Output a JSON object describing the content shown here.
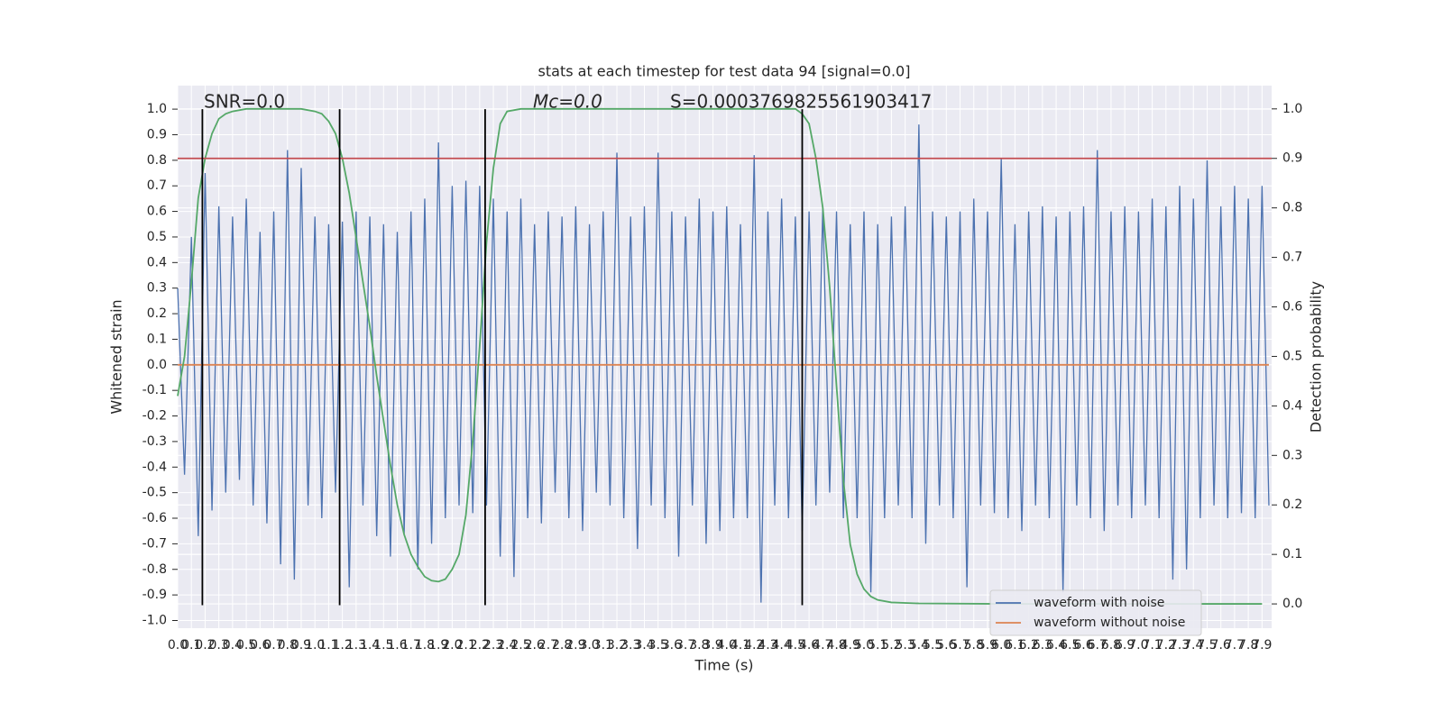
{
  "chart_data": {
    "type": "line",
    "title": "stats at each timestep for test data 94 [signal=0.0]",
    "xlabel": "Time (s)",
    "ylabel": "Whitened strain",
    "y2label": "Detection probability",
    "annotations": [
      "SNR=0.0",
      "Mc=0.0",
      "S=0.0003769825561903417"
    ],
    "xlim": [
      0,
      7.97
    ],
    "ylim": [
      -1.03,
      1.092
    ],
    "y2lim": [
      -0.049,
      1.047
    ],
    "grid": true,
    "legend": "lower right",
    "xticks": [
      {
        "value": 0,
        "label": "0.0"
      },
      0.1,
      0.2,
      0.3,
      0.4,
      0.5,
      0.6,
      0.7,
      0.8,
      0.9,
      {
        "value": 1,
        "label": "1.0"
      },
      1.1,
      1.2,
      1.3,
      1.4,
      1.5,
      1.6,
      1.7,
      1.8,
      1.9,
      {
        "value": 2,
        "label": "2.0"
      },
      2.1,
      2.2,
      2.3,
      2.4,
      2.5,
      2.6,
      2.7,
      2.8,
      2.9,
      {
        "value": 3,
        "label": "3.0"
      },
      3.1,
      3.2,
      3.3,
      3.4,
      3.5,
      3.6,
      3.7,
      3.8,
      3.9,
      {
        "value": 4,
        "label": "4.0"
      },
      4.1,
      4.2,
      4.3,
      4.4,
      4.5,
      4.6,
      4.7,
      4.8,
      4.9,
      {
        "value": 5,
        "label": "5.0"
      },
      5.1,
      5.2,
      5.3,
      5.4,
      5.5,
      5.6,
      5.7,
      5.8,
      5.9,
      {
        "value": 6,
        "label": "6.0"
      },
      6.1,
      6.2,
      6.3,
      6.4,
      6.5,
      6.6,
      6.7,
      6.8,
      6.9,
      {
        "value": 7,
        "label": "7.0"
      },
      7.1,
      7.2,
      7.3,
      7.4,
      7.5,
      7.6,
      7.7,
      7.8,
      7.9
    ],
    "yticks": [
      {
        "value": -1,
        "label": "-1.0"
      },
      -0.9,
      -0.8,
      -0.7,
      -0.6,
      -0.5,
      -0.4,
      -0.3,
      -0.2,
      -0.1,
      {
        "value": 0,
        "label": "0.0"
      },
      0.1,
      0.2,
      0.3,
      0.4,
      0.5,
      0.6,
      0.7,
      0.8,
      0.9,
      {
        "value": 1,
        "label": "1.0"
      }
    ],
    "y2ticks": [
      {
        "value": 0,
        "label": "0.0"
      },
      0.1,
      0.2,
      0.3,
      0.4,
      0.5,
      0.6,
      0.7,
      0.8,
      0.9,
      {
        "value": 1,
        "label": "1.0"
      }
    ],
    "vlines": [
      0.18,
      1.18,
      2.24,
      4.55
    ],
    "vline_ymin": -0.94,
    "vline_ymax": 1.0,
    "vline_color": "#000000",
    "hlines": [
      {
        "value": 0.9,
        "axis": "y2",
        "color": "#c44e52"
      }
    ],
    "series": [
      {
        "name": "waveform with noise",
        "color": "#4c72b0",
        "x": [
          0,
          0.05,
          0.1,
          0.15,
          0.2,
          0.25,
          0.3,
          0.35,
          0.4,
          0.45,
          0.5,
          0.55,
          0.6,
          0.65,
          0.7,
          0.75,
          0.8,
          0.85,
          0.9,
          0.95,
          1,
          1.05,
          1.1,
          1.15,
          1.2,
          1.25,
          1.3,
          1.35,
          1.4,
          1.45,
          1.5,
          1.55,
          1.6,
          1.65,
          1.7,
          1.75,
          1.8,
          1.85,
          1.9,
          1.95,
          2,
          2.05,
          2.1,
          2.15,
          2.2,
          2.25,
          2.3,
          2.35,
          2.4,
          2.45,
          2.5,
          2.55,
          2.6,
          2.65,
          2.7,
          2.75,
          2.8,
          2.85,
          2.9,
          2.95,
          3,
          3.05,
          3.1,
          3.15,
          3.2,
          3.25,
          3.3,
          3.35,
          3.4,
          3.45,
          3.5,
          3.55,
          3.6,
          3.65,
          3.7,
          3.75,
          3.8,
          3.85,
          3.9,
          3.95,
          4,
          4.05,
          4.1,
          4.15,
          4.2,
          4.25,
          4.3,
          4.35,
          4.4,
          4.45,
          4.5,
          4.55,
          4.6,
          4.65,
          4.7,
          4.75,
          4.8,
          4.85,
          4.9,
          4.95,
          5,
          5.05,
          5.1,
          5.15,
          5.2,
          5.25,
          5.3,
          5.35,
          5.4,
          5.45,
          5.5,
          5.55,
          5.6,
          5.65,
          5.7,
          5.75,
          5.8,
          5.85,
          5.9,
          5.95,
          6,
          6.05,
          6.1,
          6.15,
          6.2,
          6.25,
          6.3,
          6.35,
          6.4,
          6.45,
          6.5,
          6.55,
          6.6,
          6.65,
          6.7,
          6.75,
          6.8,
          6.85,
          6.9,
          6.95,
          7,
          7.05,
          7.1,
          7.15,
          7.2,
          7.25,
          7.3,
          7.35,
          7.4,
          7.45,
          7.5,
          7.55,
          7.6,
          7.65,
          7.7,
          7.75,
          7.8,
          7.85,
          7.9,
          7.95
        ],
        "values": [
          0.3,
          -0.43,
          0.5,
          -0.67,
          0.75,
          -0.57,
          0.62,
          -0.5,
          0.58,
          -0.45,
          0.65,
          -0.55,
          0.52,
          -0.62,
          0.6,
          -0.78,
          0.84,
          -0.84,
          0.77,
          -0.55,
          0.58,
          -0.6,
          0.55,
          -0.5,
          0.56,
          -0.87,
          0.6,
          -0.55,
          0.58,
          -0.67,
          0.55,
          -0.75,
          0.52,
          -0.66,
          0.6,
          -0.8,
          0.65,
          -0.7,
          0.87,
          -0.6,
          0.7,
          -0.55,
          0.72,
          -0.58,
          0.7,
          -0.55,
          0.65,
          -0.75,
          0.6,
          -0.83,
          0.65,
          -0.6,
          0.55,
          -0.62,
          0.6,
          -0.5,
          0.58,
          -0.6,
          0.62,
          -0.65,
          0.55,
          -0.5,
          0.6,
          -0.55,
          0.83,
          -0.6,
          0.58,
          -0.72,
          0.62,
          -0.55,
          0.83,
          -0.6,
          0.6,
          -0.75,
          0.58,
          -0.55,
          0.65,
          -0.7,
          0.6,
          -0.65,
          0.62,
          -0.6,
          0.55,
          -0.6,
          0.82,
          -0.93,
          0.6,
          -0.55,
          0.65,
          -0.6,
          0.58,
          -0.65,
          0.6,
          -0.55,
          0.62,
          -0.5,
          0.6,
          -0.6,
          0.55,
          -0.6,
          0.6,
          -0.89,
          0.55,
          -0.6,
          0.58,
          -0.55,
          0.62,
          -0.6,
          0.94,
          -0.7,
          0.6,
          -0.55,
          0.58,
          -0.6,
          0.6,
          -0.87,
          0.65,
          -0.55,
          0.6,
          -0.58,
          0.81,
          -0.6,
          0.55,
          -0.65,
          0.6,
          -0.55,
          0.62,
          -0.6,
          0.58,
          -0.89,
          0.6,
          -0.55,
          0.62,
          -0.6,
          0.84,
          -0.65,
          0.6,
          -0.55,
          0.62,
          -0.6,
          0.6,
          -0.55,
          0.65,
          -0.6,
          0.62,
          -0.84,
          0.7,
          -0.8,
          0.65,
          -0.6,
          0.8,
          -0.55,
          0.62,
          -0.6,
          0.7,
          -0.58,
          0.65,
          -0.6,
          0.7,
          -0.55
        ]
      },
      {
        "name": "waveform without noise",
        "color": "#dd8452",
        "x": [
          0,
          7.95
        ],
        "values": [
          0,
          0
        ]
      },
      {
        "color": "#55a868",
        "axis": "y2",
        "x": [
          0,
          0.05,
          0.1,
          0.15,
          0.2,
          0.25,
          0.3,
          0.35,
          0.4,
          0.5,
          0.9,
          1,
          1.05,
          1.1,
          1.15,
          1.2,
          1.25,
          1.3,
          1.35,
          1.4,
          1.45,
          1.5,
          1.55,
          1.6,
          1.65,
          1.7,
          1.75,
          1.8,
          1.85,
          1.9,
          1.95,
          2,
          2.05,
          2.1,
          2.15,
          2.2,
          2.25,
          2.3,
          2.35,
          2.4,
          2.5,
          4.5,
          4.55,
          4.6,
          4.65,
          4.7,
          4.75,
          4.8,
          4.85,
          4.9,
          4.95,
          5,
          5.05,
          5.1,
          5.2,
          5.4,
          6,
          7.9
        ],
        "values": [
          0.42,
          0.5,
          0.65,
          0.82,
          0.9,
          0.95,
          0.98,
          0.99,
          0.995,
          1,
          1,
          0.995,
          0.99,
          0.975,
          0.95,
          0.9,
          0.83,
          0.74,
          0.65,
          0.56,
          0.46,
          0.37,
          0.28,
          0.2,
          0.14,
          0.1,
          0.075,
          0.055,
          0.047,
          0.045,
          0.05,
          0.07,
          0.1,
          0.18,
          0.33,
          0.52,
          0.73,
          0.88,
          0.97,
          0.995,
          1,
          1,
          0.99,
          0.97,
          0.9,
          0.8,
          0.64,
          0.44,
          0.25,
          0.12,
          0.06,
          0.03,
          0.015,
          0.008,
          0.003,
          0.001,
          0,
          0
        ]
      }
    ]
  }
}
